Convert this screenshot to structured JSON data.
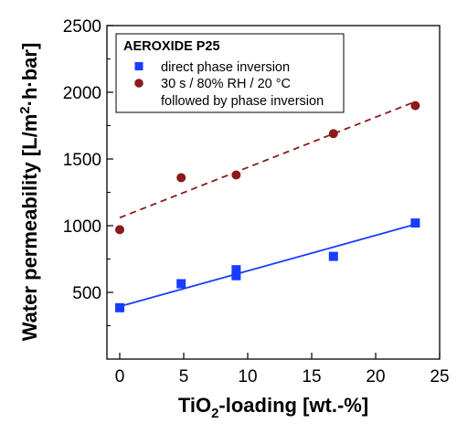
{
  "chart_data": {
    "type": "scatter",
    "xlabel": {
      "main": "TiO",
      "sub": "2",
      "rest": "-loading [wt.-%]"
    },
    "ylabel": {
      "main": "Water permeability [L/m",
      "sup": "2",
      "rest": "·h·bar]"
    },
    "xlim": [
      -1,
      25
    ],
    "ylim": [
      0,
      2500
    ],
    "x_ticks": [
      0,
      5,
      10,
      15,
      20,
      25
    ],
    "y_ticks": [
      500,
      1000,
      1500,
      2000,
      2500
    ],
    "grid": false,
    "legend": {
      "title": "AEROXIDE P25",
      "placement": "top-left"
    },
    "series": [
      {
        "name": "direct phase inversion",
        "color": "#1a3cff",
        "marker": "square",
        "x": [
          0,
          4.8,
          9.1,
          9.1,
          16.7,
          23.1
        ],
        "y": [
          385,
          565,
          625,
          670,
          770,
          1020
        ],
        "fit": {
          "style": "solid",
          "x": [
            0,
            23.1
          ],
          "y": [
            395,
            1010
          ]
        }
      },
      {
        "name": "30 s / 80% RH / 20 °C",
        "name_line2": "followed by phase inversion",
        "color": "#8b1a1a",
        "marker": "circle",
        "x": [
          0,
          4.8,
          9.1,
          16.7,
          23.1
        ],
        "y": [
          970,
          1360,
          1380,
          1690,
          1900
        ],
        "fit": {
          "style": "dashed",
          "x": [
            0,
            23.1
          ],
          "y": [
            1060,
            1930
          ]
        }
      }
    ]
  }
}
